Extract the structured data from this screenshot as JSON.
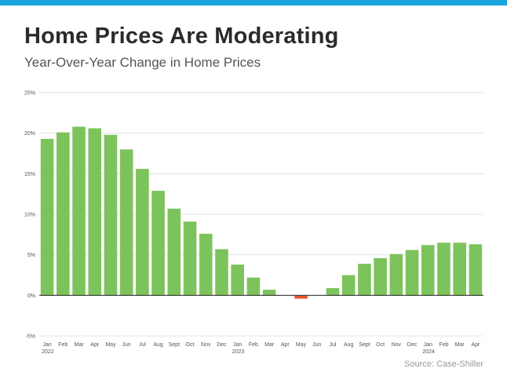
{
  "header": {
    "title": "Home Prices Are Moderating",
    "subtitle": "Year-Over-Year Change in Home Prices"
  },
  "source": "Source: Case-Shiller",
  "colors": {
    "accent_bar": "#1aa3dd",
    "positive": "#7dc35b",
    "negative": "#e8542c"
  },
  "chart_data": {
    "type": "bar",
    "title": "Year-Over-Year Change in Home Prices",
    "categories": [
      "Jan",
      "Feb",
      "Mar",
      "Apr",
      "May",
      "Jun",
      "Jul",
      "Aug",
      "Sept",
      "Oct",
      "Nov",
      "Dec",
      "Jan",
      "Feb",
      "Mar",
      "Apr",
      "May",
      "Jun",
      "Jul",
      "Aug",
      "Sept",
      "Oct",
      "Nov",
      "Dec",
      "Jan",
      "Feb",
      "Mar",
      "Apr"
    ],
    "year_labels": [
      "2022",
      "",
      "",
      "",
      "",
      "",
      "",
      "",
      "",
      "",
      "",
      "",
      "2023",
      "",
      "",
      "",
      "",
      "",
      "",
      "",
      "",
      "",
      "",
      "",
      "2024",
      "",
      "",
      ""
    ],
    "values": [
      19.3,
      20.1,
      20.8,
      20.6,
      19.8,
      18.0,
      15.6,
      12.9,
      10.7,
      9.1,
      7.6,
      5.7,
      3.8,
      2.2,
      0.7,
      0.0,
      -0.4,
      0.0,
      0.9,
      2.5,
      3.9,
      4.6,
      5.1,
      5.6,
      6.2,
      6.5,
      6.5,
      6.3
    ],
    "ylim": [
      -5,
      25
    ],
    "yticks": [
      "-5%",
      "0%",
      "5%",
      "10%",
      "15%",
      "20%",
      "25%"
    ],
    "ytick_values": [
      -5,
      0,
      5,
      10,
      15,
      20,
      25
    ],
    "grid": true,
    "legend": "none"
  }
}
